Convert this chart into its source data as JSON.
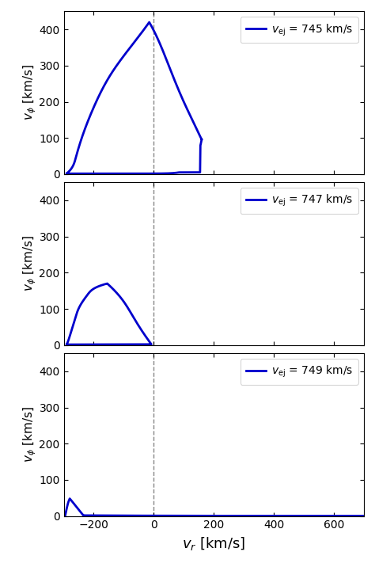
{
  "panels": [
    {
      "v_ej": 745,
      "ylim": [
        0,
        450
      ],
      "yticks": [
        0,
        100,
        200,
        300,
        400
      ]
    },
    {
      "v_ej": 747,
      "ylim": [
        0,
        450
      ],
      "yticks": [
        0,
        100,
        200,
        300,
        400
      ]
    },
    {
      "v_ej": 749,
      "ylim": [
        0,
        450
      ],
      "yticks": [
        0,
        100,
        200,
        300,
        400
      ]
    }
  ],
  "xlim": [
    -300,
    700
  ],
  "xticks": [
    -200,
    0,
    200,
    400,
    600
  ],
  "line_color": "#0000cc",
  "line_width": 2.0,
  "dashed_color": "#888888",
  "xlabel": "$v_r$ [km/s]",
  "ylabel": "$v_\\phi$ [km/s]",
  "figsize": [
    4.74,
    7.16
  ],
  "dpi": 100
}
